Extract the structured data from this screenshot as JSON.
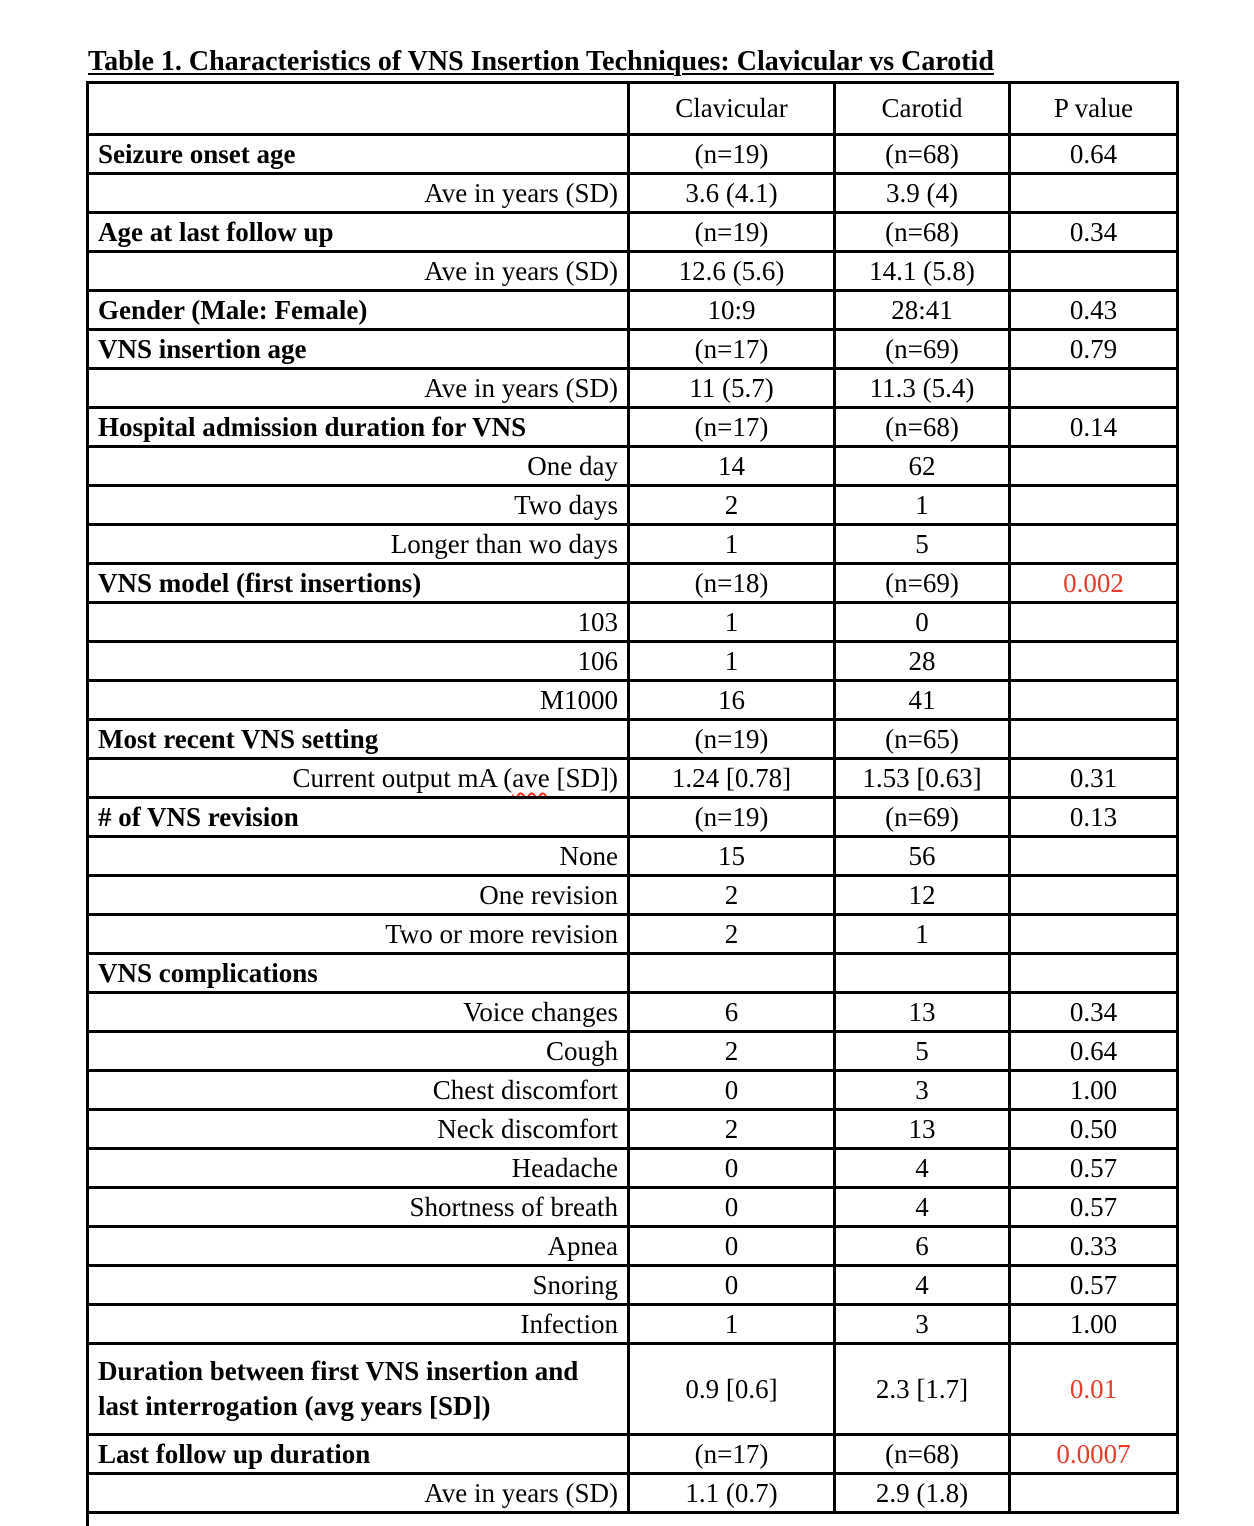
{
  "page": {
    "title": "Table 1. Characteristics of VNS Insertion Techniques: Clavicular vs Carotid"
  },
  "colors": {
    "p_value_red": "#e63c2d",
    "spellcheck_red": "#ff2a1a",
    "border_black": "#000000",
    "background": "#ffffff"
  },
  "table": {
    "columns": [
      "",
      "Clavicular",
      "Carotid",
      "P value"
    ],
    "rows": [
      {
        "label": "Seizure onset age",
        "style": "category",
        "clavicular": "(n=19)",
        "carotid": "(n=68)",
        "p_value": "0.64"
      },
      {
        "label": "Ave in years (SD)",
        "style": "sub",
        "clavicular": "3.6 (4.1)",
        "carotid": "3.9 (4)",
        "p_value": ""
      },
      {
        "label": "Age at last follow up",
        "style": "category",
        "clavicular": "(n=19)",
        "carotid": "(n=68)",
        "p_value": "0.34"
      },
      {
        "label": "Ave in years (SD)",
        "style": "sub",
        "clavicular": "12.6 (5.6)",
        "carotid": "14.1 (5.8)",
        "p_value": ""
      },
      {
        "label": "Gender (Male: Female)",
        "style": "category",
        "clavicular": "10:9",
        "carotid": "28:41",
        "p_value": "0.43"
      },
      {
        "label": "VNS insertion age",
        "style": "category",
        "clavicular": "(n=17)",
        "carotid": "(n=69)",
        "p_value": "0.79"
      },
      {
        "label": "Ave in years (SD)",
        "style": "sub",
        "clavicular": "11 (5.7)",
        "carotid": "11.3 (5.4)",
        "p_value": ""
      },
      {
        "label": "Hospital admission duration for VNS",
        "style": "category",
        "clavicular": "(n=17)",
        "carotid": "(n=68)",
        "p_value": "0.14"
      },
      {
        "label": "One day",
        "style": "sub",
        "clavicular": "14",
        "carotid": "62",
        "p_value": ""
      },
      {
        "label": "Two days",
        "style": "sub",
        "clavicular": "2",
        "carotid": "1",
        "p_value": ""
      },
      {
        "label": "Longer than wo days",
        "style": "sub",
        "clavicular": "1",
        "carotid": "5",
        "p_value": ""
      },
      {
        "label": "VNS model (first insertions)",
        "style": "category",
        "clavicular": "(n=18)",
        "carotid": "(n=69)",
        "p_value": "0.002",
        "p_red": true
      },
      {
        "label": "103",
        "style": "sub",
        "clavicular": "1",
        "carotid": "0",
        "p_value": ""
      },
      {
        "label": "106",
        "style": "sub",
        "clavicular": "1",
        "carotid": "28",
        "p_value": ""
      },
      {
        "label": "M1000",
        "style": "sub",
        "clavicular": "16",
        "carotid": "41",
        "p_value": ""
      },
      {
        "label": "Most recent VNS setting",
        "style": "category",
        "clavicular": "(n=19)",
        "carotid": "(n=65)",
        "p_value": ""
      },
      {
        "label": "Current output mA (ave [SD])",
        "style": "sub",
        "clavicular": "1.24 [0.78]",
        "carotid": "1.53 [0.63]",
        "p_value": "0.31",
        "squiggle_word": "ave"
      },
      {
        "label": "# of VNS revision",
        "style": "category",
        "clavicular": "(n=19)",
        "carotid": "(n=69)",
        "p_value": "0.13"
      },
      {
        "label": "None",
        "style": "sub",
        "clavicular": "15",
        "carotid": "56",
        "p_value": ""
      },
      {
        "label": "One revision",
        "style": "sub",
        "clavicular": "2",
        "carotid": "12",
        "p_value": ""
      },
      {
        "label": "Two or more revision",
        "style": "sub",
        "clavicular": "2",
        "carotid": "1",
        "p_value": ""
      },
      {
        "label": "VNS complications",
        "style": "category",
        "clavicular": "",
        "carotid": "",
        "p_value": ""
      },
      {
        "label": "Voice changes",
        "style": "sub",
        "clavicular": "6",
        "carotid": "13",
        "p_value": "0.34"
      },
      {
        "label": "Cough",
        "style": "sub",
        "clavicular": "2",
        "carotid": "5",
        "p_value": "0.64"
      },
      {
        "label": "Chest discomfort",
        "style": "sub",
        "clavicular": "0",
        "carotid": "3",
        "p_value": "1.00"
      },
      {
        "label": "Neck discomfort",
        "style": "sub",
        "clavicular": "2",
        "carotid": "13",
        "p_value": "0.50"
      },
      {
        "label": "Headache",
        "style": "sub",
        "clavicular": "0",
        "carotid": "4",
        "p_value": "0.57"
      },
      {
        "label": "Shortness of breath",
        "style": "sub",
        "clavicular": "0",
        "carotid": "4",
        "p_value": "0.57"
      },
      {
        "label": "Apnea",
        "style": "sub",
        "clavicular": "0",
        "carotid": "6",
        "p_value": "0.33"
      },
      {
        "label": "Snoring",
        "style": "sub",
        "clavicular": "0",
        "carotid": "4",
        "p_value": "0.57"
      },
      {
        "label": "Infection",
        "style": "sub",
        "clavicular": "1",
        "carotid": "3",
        "p_value": "1.00"
      },
      {
        "label": "Duration between first VNS insertion and last interrogation (avg years [SD])",
        "style": "category",
        "tall": true,
        "clavicular": "0.9 [0.6]",
        "carotid": "2.3 [1.7]",
        "p_value": "0.01",
        "p_red": true
      },
      {
        "label": "Last follow up duration",
        "style": "category",
        "clavicular": "(n=17)",
        "carotid": "(n=68)",
        "p_value": "0.0007",
        "p_red": true
      },
      {
        "label": "Ave in years (SD)",
        "style": "sub",
        "clavicular": "1.1 (0.7)",
        "carotid": "2.9 (1.8)",
        "p_value": ""
      }
    ]
  }
}
